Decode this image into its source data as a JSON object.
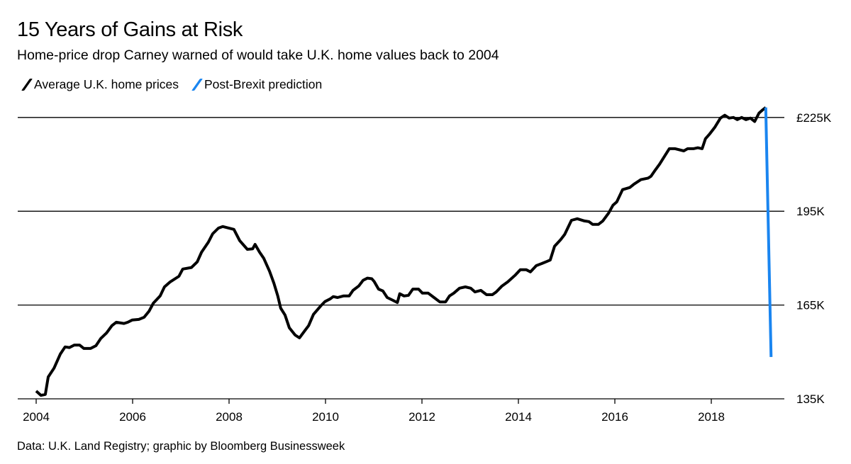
{
  "chart_data": {
    "type": "line",
    "title": "15 Years of Gains at Risk",
    "subtitle": "Home-price drop Carney warned of would take U.K. home values back to 2004",
    "source": "Data: U.K. Land Registry; graphic by Bloomberg Businessweek",
    "xlabel": "",
    "ylabel": "",
    "xlim": [
      2004,
      2019.4
    ],
    "ylim": [
      135,
      225
    ],
    "x_ticks": [
      "2004",
      "2006",
      "2008",
      "2010",
      "2012",
      "2014",
      "2016",
      "2018"
    ],
    "y_ticks": [
      {
        "value": 135,
        "label": "135K"
      },
      {
        "value": 165,
        "label": "165K"
      },
      {
        "value": 195,
        "label": "195K"
      },
      {
        "value": 225,
        "label": "£225K"
      }
    ],
    "grid": "horizontal",
    "legend_placement": "top-left",
    "series": [
      {
        "name": "Average U.K. home prices",
        "color": "#000000",
        "points": [
          [
            2004.0,
            137.5
          ],
          [
            2004.1,
            136.1
          ],
          [
            2004.19,
            136.4
          ],
          [
            2004.25,
            142.0
          ],
          [
            2004.37,
            144.8
          ],
          [
            2004.5,
            149.3
          ],
          [
            2004.6,
            151.6
          ],
          [
            2004.69,
            151.4
          ],
          [
            2004.79,
            152.2
          ],
          [
            2004.9,
            152.2
          ],
          [
            2004.99,
            151.1
          ],
          [
            2005.13,
            151.1
          ],
          [
            2005.24,
            152.0
          ],
          [
            2005.34,
            154.3
          ],
          [
            2005.46,
            156.1
          ],
          [
            2005.57,
            158.4
          ],
          [
            2005.66,
            159.5
          ],
          [
            2005.82,
            159.1
          ],
          [
            2005.9,
            159.5
          ],
          [
            2005.99,
            160.2
          ],
          [
            2006.13,
            160.4
          ],
          [
            2006.24,
            161.1
          ],
          [
            2006.34,
            163.0
          ],
          [
            2006.43,
            165.6
          ],
          [
            2006.57,
            167.9
          ],
          [
            2006.66,
            170.8
          ],
          [
            2006.78,
            172.4
          ],
          [
            2006.96,
            174.2
          ],
          [
            2007.04,
            176.5
          ],
          [
            2007.22,
            177.0
          ],
          [
            2007.34,
            178.8
          ],
          [
            2007.43,
            181.9
          ],
          [
            2007.57,
            185.1
          ],
          [
            2007.66,
            187.8
          ],
          [
            2007.78,
            189.6
          ],
          [
            2007.87,
            190.1
          ],
          [
            2008.1,
            189.2
          ],
          [
            2008.22,
            185.6
          ],
          [
            2008.38,
            182.8
          ],
          [
            2008.49,
            183.0
          ],
          [
            2008.54,
            184.4
          ],
          [
            2008.63,
            182.0
          ],
          [
            2008.72,
            179.9
          ],
          [
            2008.84,
            175.8
          ],
          [
            2008.93,
            172.0
          ],
          [
            2009.01,
            167.9
          ],
          [
            2009.07,
            164.0
          ],
          [
            2009.16,
            161.8
          ],
          [
            2009.25,
            157.7
          ],
          [
            2009.37,
            155.4
          ],
          [
            2009.46,
            154.5
          ],
          [
            2009.57,
            156.8
          ],
          [
            2009.65,
            158.4
          ],
          [
            2009.75,
            162.0
          ],
          [
            2009.9,
            164.7
          ],
          [
            2009.99,
            166.1
          ],
          [
            2010.1,
            167.0
          ],
          [
            2010.16,
            167.7
          ],
          [
            2010.25,
            167.4
          ],
          [
            2010.37,
            167.9
          ],
          [
            2010.49,
            167.9
          ],
          [
            2010.57,
            169.7
          ],
          [
            2010.69,
            171.1
          ],
          [
            2010.78,
            172.9
          ],
          [
            2010.87,
            173.6
          ],
          [
            2010.96,
            173.4
          ],
          [
            2011.01,
            172.5
          ],
          [
            2011.1,
            170.1
          ],
          [
            2011.19,
            169.5
          ],
          [
            2011.28,
            167.4
          ],
          [
            2011.4,
            166.5
          ],
          [
            2011.49,
            165.8
          ],
          [
            2011.54,
            168.6
          ],
          [
            2011.63,
            167.9
          ],
          [
            2011.72,
            168.1
          ],
          [
            2011.81,
            170.1
          ],
          [
            2011.93,
            170.1
          ],
          [
            2012.01,
            168.8
          ],
          [
            2012.13,
            168.8
          ],
          [
            2012.25,
            167.4
          ],
          [
            2012.37,
            166.0
          ],
          [
            2012.49,
            166.0
          ],
          [
            2012.57,
            167.9
          ],
          [
            2012.66,
            168.8
          ],
          [
            2012.78,
            170.4
          ],
          [
            2012.9,
            170.8
          ],
          [
            2013.01,
            170.4
          ],
          [
            2013.1,
            169.2
          ],
          [
            2013.22,
            169.7
          ],
          [
            2013.34,
            168.3
          ],
          [
            2013.46,
            168.3
          ],
          [
            2013.54,
            169.2
          ],
          [
            2013.66,
            171.1
          ],
          [
            2013.78,
            172.4
          ],
          [
            2013.93,
            174.5
          ],
          [
            2014.04,
            176.3
          ],
          [
            2014.16,
            176.3
          ],
          [
            2014.25,
            175.6
          ],
          [
            2014.37,
            177.6
          ],
          [
            2014.49,
            178.3
          ],
          [
            2014.6,
            179.0
          ],
          [
            2014.66,
            179.4
          ],
          [
            2014.75,
            183.8
          ],
          [
            2014.87,
            185.8
          ],
          [
            2014.96,
            187.6
          ],
          [
            2015.1,
            192.1
          ],
          [
            2015.22,
            192.6
          ],
          [
            2015.37,
            191.9
          ],
          [
            2015.46,
            191.7
          ],
          [
            2015.54,
            190.8
          ],
          [
            2015.66,
            190.8
          ],
          [
            2015.75,
            191.9
          ],
          [
            2015.87,
            194.4
          ],
          [
            2015.96,
            196.9
          ],
          [
            2016.04,
            198.0
          ],
          [
            2016.16,
            201.9
          ],
          [
            2016.31,
            202.6
          ],
          [
            2016.4,
            203.7
          ],
          [
            2016.54,
            205.1
          ],
          [
            2016.69,
            205.6
          ],
          [
            2016.75,
            206.2
          ],
          [
            2016.84,
            208.2
          ],
          [
            2016.93,
            210.1
          ],
          [
            2017.04,
            212.8
          ],
          [
            2017.13,
            215.0
          ],
          [
            2017.25,
            215.0
          ],
          [
            2017.43,
            214.3
          ],
          [
            2017.51,
            215.0
          ],
          [
            2017.63,
            215.0
          ],
          [
            2017.72,
            215.3
          ],
          [
            2017.81,
            215.0
          ],
          [
            2017.88,
            218.2
          ],
          [
            2017.96,
            219.6
          ],
          [
            2018.07,
            221.8
          ],
          [
            2018.19,
            224.8
          ],
          [
            2018.28,
            225.7
          ],
          [
            2018.37,
            224.8
          ],
          [
            2018.46,
            225.0
          ],
          [
            2018.54,
            224.3
          ],
          [
            2018.63,
            225.0
          ],
          [
            2018.72,
            224.3
          ],
          [
            2018.81,
            224.8
          ],
          [
            2018.9,
            223.7
          ],
          [
            2018.99,
            226.4
          ],
          [
            2019.07,
            227.5
          ],
          [
            2019.13,
            228.2
          ]
        ]
      },
      {
        "name": "Post-Brexit prediction",
        "color": "#1a85f0",
        "points": [
          [
            2019.13,
            228.2
          ],
          [
            2019.24,
            148.4
          ]
        ]
      }
    ]
  }
}
